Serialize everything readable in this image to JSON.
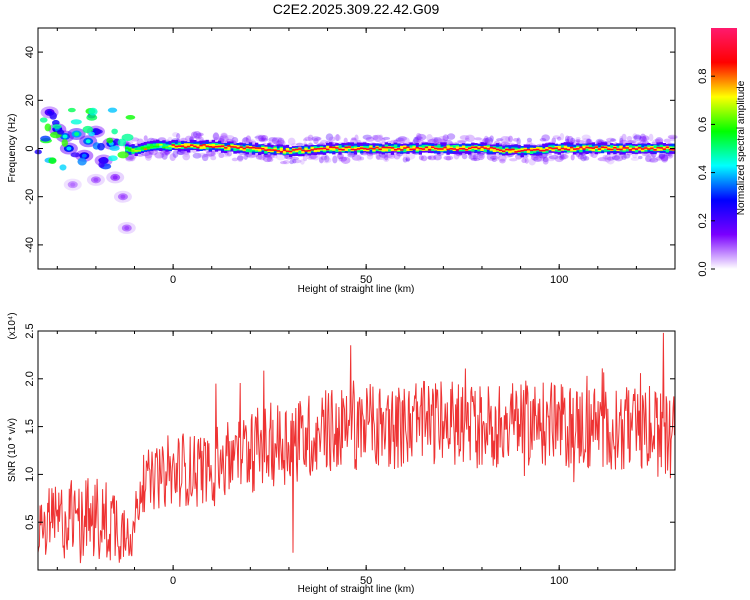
{
  "figure": {
    "title": "C2E2.2025.309.22.42.G09"
  },
  "colors": {
    "snr_line": "#ee3333",
    "spectrogram_background": "#ffffff"
  },
  "chart_data": [
    {
      "type": "heatmap",
      "xlabel": "Height of straight line (km)",
      "ylabel": "Frequency (Hz)",
      "xlim": [
        -35,
        130
      ],
      "ylim": [
        -50,
        50
      ],
      "x_ticks": [
        0,
        50,
        100
      ],
      "y_ticks": [
        -40,
        -20,
        0,
        20,
        40
      ],
      "colorbar": {
        "label": "Normalized spectral amplitude",
        "range": [
          0,
          1
        ],
        "ticks": [
          0.0,
          0.2,
          0.4,
          0.6,
          0.8
        ],
        "tick_labels": [
          "0.0",
          "0.2",
          "0.4",
          "0.6",
          "0.8"
        ],
        "colormap": [
          "#ffffff",
          "#7a00ff",
          "#0000ff",
          "#00ffff",
          "#00ff00",
          "#ffff00",
          "#ff0000",
          "#ff1a6e"
        ]
      },
      "ridge": [
        {
          "x": -33,
          "y": 3
        },
        {
          "x": -30,
          "y": 2
        },
        {
          "x": -25,
          "y": 1
        },
        {
          "x": -20,
          "y": 2
        },
        {
          "x": -15,
          "y": 1
        },
        {
          "x": -10,
          "y": -1
        },
        {
          "x": -5,
          "y": 1
        },
        {
          "x": 0,
          "y": 1
        },
        {
          "x": 10,
          "y": 1
        },
        {
          "x": 20,
          "y": 0
        },
        {
          "x": 30,
          "y": -1
        },
        {
          "x": 40,
          "y": 0
        },
        {
          "x": 50,
          "y": 0
        },
        {
          "x": 60,
          "y": 0
        },
        {
          "x": 70,
          "y": 0
        },
        {
          "x": 80,
          "y": 0
        },
        {
          "x": 90,
          "y": -1
        },
        {
          "x": 100,
          "y": 0
        },
        {
          "x": 110,
          "y": 0
        },
        {
          "x": 120,
          "y": 0
        },
        {
          "x": 130,
          "y": 0
        }
      ],
      "early_blobs": [
        {
          "x": -32,
          "y": 15,
          "a": 0.25
        },
        {
          "x": -30,
          "y": 8,
          "a": 0.35
        },
        {
          "x": -28,
          "y": 5,
          "a": 0.45
        },
        {
          "x": -27,
          "y": 0,
          "a": 0.4
        },
        {
          "x": -25,
          "y": 6,
          "a": 0.5
        },
        {
          "x": -23,
          "y": -3,
          "a": 0.35
        },
        {
          "x": -22,
          "y": 3,
          "a": 0.45
        },
        {
          "x": -20,
          "y": 7,
          "a": 0.3
        },
        {
          "x": -18,
          "y": -5,
          "a": 0.3
        },
        {
          "x": -16,
          "y": 2,
          "a": 0.4
        },
        {
          "x": -15,
          "y": -12,
          "a": 0.12
        },
        {
          "x": -13,
          "y": -20,
          "a": 0.1
        },
        {
          "x": -12,
          "y": -33,
          "a": 0.1
        },
        {
          "x": -20,
          "y": -13,
          "a": 0.1
        },
        {
          "x": -26,
          "y": -15,
          "a": 0.08
        }
      ]
    },
    {
      "type": "line",
      "xlabel": "Height of straight line (km)",
      "ylabel": "SNR (10 * v/v)",
      "y_scale_label": "(x10⁴)",
      "xlim": [
        -35,
        130
      ],
      "ylim": [
        0,
        2.5
      ],
      "x_ticks": [
        0,
        50,
        100
      ],
      "y_ticks": [
        0.5,
        1.0,
        1.5,
        2.0,
        2.5
      ],
      "y_tick_labels": [
        "0.5",
        "1.0",
        "1.5",
        "2.0",
        "2.5"
      ],
      "series_envelope": [
        {
          "x": -35,
          "mean": 0.45,
          "spread": 0.35
        },
        {
          "x": -25,
          "mean": 0.55,
          "spread": 0.45
        },
        {
          "x": -15,
          "mean": 0.5,
          "spread": 0.45
        },
        {
          "x": -11,
          "mean": 0.35,
          "spread": 0.25
        },
        {
          "x": -8,
          "mean": 0.9,
          "spread": 0.3
        },
        {
          "x": 0,
          "mean": 1.0,
          "spread": 0.35
        },
        {
          "x": 10,
          "mean": 1.1,
          "spread": 0.4
        },
        {
          "x": 20,
          "mean": 1.25,
          "spread": 0.45
        },
        {
          "x": 30,
          "mean": 1.35,
          "spread": 0.45
        },
        {
          "x": 40,
          "mean": 1.45,
          "spread": 0.45
        },
        {
          "x": 50,
          "mean": 1.5,
          "spread": 0.45
        },
        {
          "x": 60,
          "mean": 1.5,
          "spread": 0.45
        },
        {
          "x": 70,
          "mean": 1.55,
          "spread": 0.45
        },
        {
          "x": 80,
          "mean": 1.5,
          "spread": 0.45
        },
        {
          "x": 90,
          "mean": 1.55,
          "spread": 0.45
        },
        {
          "x": 100,
          "mean": 1.5,
          "spread": 0.45
        },
        {
          "x": 110,
          "mean": 1.5,
          "spread": 0.45
        },
        {
          "x": 120,
          "mean": 1.45,
          "spread": 0.45
        },
        {
          "x": 130,
          "mean": 1.4,
          "spread": 0.45
        }
      ],
      "notable_points": [
        {
          "x": 31,
          "y": 0.18
        },
        {
          "x": 127,
          "y": 2.48
        },
        {
          "x": 11,
          "y": 1.95
        },
        {
          "x": 46,
          "y": 2.35
        }
      ]
    }
  ]
}
